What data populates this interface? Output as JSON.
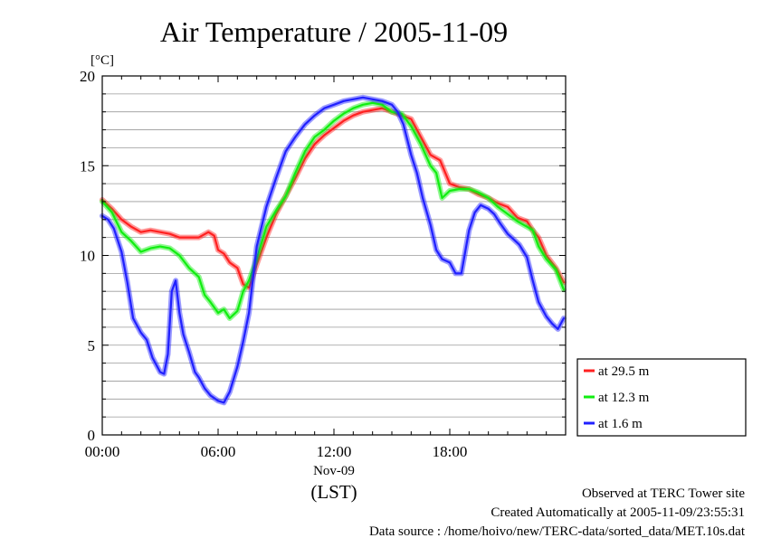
{
  "chart_data": {
    "type": "line",
    "title": "Air Temperature / 2005-11-09",
    "ylabel": "[°C]",
    "xlabel": "(LST)",
    "date_label": "Nov-09",
    "ylim": [
      0,
      20
    ],
    "xlim": [
      0,
      24
    ],
    "y_major_ticks": [
      0,
      5,
      10,
      15,
      20
    ],
    "x_ticks": [
      {
        "value": 0,
        "label": "00:00"
      },
      {
        "value": 6,
        "label": "06:00"
      },
      {
        "value": 12,
        "label": "12:00"
      },
      {
        "value": 18,
        "label": "18:00"
      }
    ],
    "grid": true,
    "legend_position": "bottom-right, outside plot",
    "series": [
      {
        "name": "at 29.5 m",
        "color": "#ff2020",
        "x": [
          0,
          0.5,
          1,
          1.5,
          2,
          2.5,
          3,
          3.5,
          4,
          4.5,
          5,
          5.5,
          5.8,
          6,
          6.3,
          6.6,
          7,
          7.3,
          7.6,
          8,
          8.5,
          9,
          9.5,
          10,
          10.5,
          11,
          11.5,
          12,
          12.5,
          13,
          13.5,
          14,
          14.5,
          15,
          15.5,
          16,
          16.5,
          17,
          17.5,
          18,
          18.5,
          19,
          19.5,
          20,
          20.5,
          21,
          21.5,
          22,
          22.3,
          22.6,
          23,
          23.5,
          23.9
        ],
        "y": [
          13.1,
          12.6,
          12.0,
          11.6,
          11.3,
          11.4,
          11.3,
          11.2,
          11.0,
          11.0,
          11.0,
          11.3,
          11.1,
          10.3,
          10.1,
          9.6,
          9.3,
          8.4,
          8.2,
          9.5,
          11.0,
          12.3,
          13.3,
          14.3,
          15.4,
          16.2,
          16.7,
          17.1,
          17.5,
          17.8,
          18.0,
          18.1,
          18.2,
          18.0,
          17.8,
          17.6,
          16.6,
          15.6,
          15.3,
          14.0,
          13.8,
          13.7,
          13.4,
          13.2,
          12.9,
          12.7,
          12.1,
          11.9,
          11.4,
          11.0,
          10.0,
          9.3,
          8.5
        ]
      },
      {
        "name": "at 12.3 m",
        "color": "#10ee10",
        "x": [
          0,
          0.5,
          1,
          1.5,
          2,
          2.5,
          3,
          3.5,
          4,
          4.5,
          5,
          5.3,
          5.6,
          6,
          6.3,
          6.6,
          7,
          7.3,
          7.6,
          8,
          8.5,
          9,
          9.5,
          10,
          10.5,
          11,
          11.5,
          12,
          12.5,
          13,
          13.5,
          14,
          14.5,
          15,
          15.5,
          16,
          16.5,
          17,
          17.3,
          17.6,
          18,
          18.5,
          19,
          19.5,
          20,
          20.5,
          21,
          21.5,
          22,
          22.3,
          22.6,
          23,
          23.5,
          23.9
        ],
        "y": [
          13.0,
          12.4,
          11.3,
          10.8,
          10.2,
          10.4,
          10.5,
          10.4,
          10.0,
          9.3,
          8.8,
          7.8,
          7.4,
          6.8,
          7.0,
          6.5,
          6.9,
          8.0,
          8.6,
          9.8,
          11.6,
          12.5,
          13.3,
          14.6,
          15.8,
          16.6,
          17.0,
          17.5,
          17.9,
          18.2,
          18.4,
          18.5,
          18.4,
          18.0,
          17.9,
          17.2,
          16.2,
          15.0,
          14.6,
          13.2,
          13.6,
          13.7,
          13.7,
          13.5,
          13.2,
          12.7,
          12.3,
          11.9,
          11.6,
          11.4,
          10.5,
          9.8,
          9.2,
          8.1
        ]
      },
      {
        "name": "at 1.6 m",
        "color": "#2020ff",
        "x": [
          0,
          0.3,
          0.6,
          1,
          1.3,
          1.6,
          2,
          2.3,
          2.6,
          3,
          3.2,
          3.4,
          3.6,
          3.8,
          4,
          4.2,
          4.5,
          4.8,
          5,
          5.3,
          5.6,
          6,
          6.3,
          6.6,
          7,
          7.3,
          7.6,
          8,
          8.5,
          9,
          9.5,
          10,
          10.5,
          11,
          11.5,
          12,
          12.5,
          13,
          13.5,
          14,
          14.5,
          15,
          15.3,
          15.6,
          16,
          16.3,
          16.6,
          17,
          17.3,
          17.6,
          18,
          18.3,
          18.6,
          19,
          19.3,
          19.6,
          20,
          20.3,
          20.6,
          21,
          21.3,
          21.6,
          22,
          22.3,
          22.6,
          23,
          23.3,
          23.6,
          23.9
        ],
        "y": [
          12.2,
          12.0,
          11.5,
          10.2,
          8.5,
          6.5,
          5.7,
          5.3,
          4.3,
          3.5,
          3.4,
          4.5,
          8.0,
          8.6,
          6.8,
          5.6,
          4.6,
          3.5,
          3.2,
          2.6,
          2.2,
          1.9,
          1.8,
          2.4,
          3.8,
          5.2,
          6.8,
          10.5,
          12.7,
          14.3,
          15.8,
          16.6,
          17.3,
          17.8,
          18.2,
          18.4,
          18.6,
          18.7,
          18.8,
          18.7,
          18.6,
          18.4,
          18.0,
          17.3,
          15.6,
          14.6,
          13.2,
          11.7,
          10.3,
          9.8,
          9.6,
          9.0,
          9.0,
          11.4,
          12.4,
          12.8,
          12.6,
          12.3,
          11.8,
          11.2,
          10.9,
          10.6,
          9.9,
          8.6,
          7.4,
          6.6,
          6.2,
          5.9,
          6.5
        ]
      }
    ]
  },
  "footer": {
    "line1": "Observed at TERC Tower site",
    "line2": "Created Automatically at 2005-11-09/23:55:31",
    "line3": "Data source : /home/hoivo/new/TERC-data/sorted_data/MET.10s.dat"
  }
}
